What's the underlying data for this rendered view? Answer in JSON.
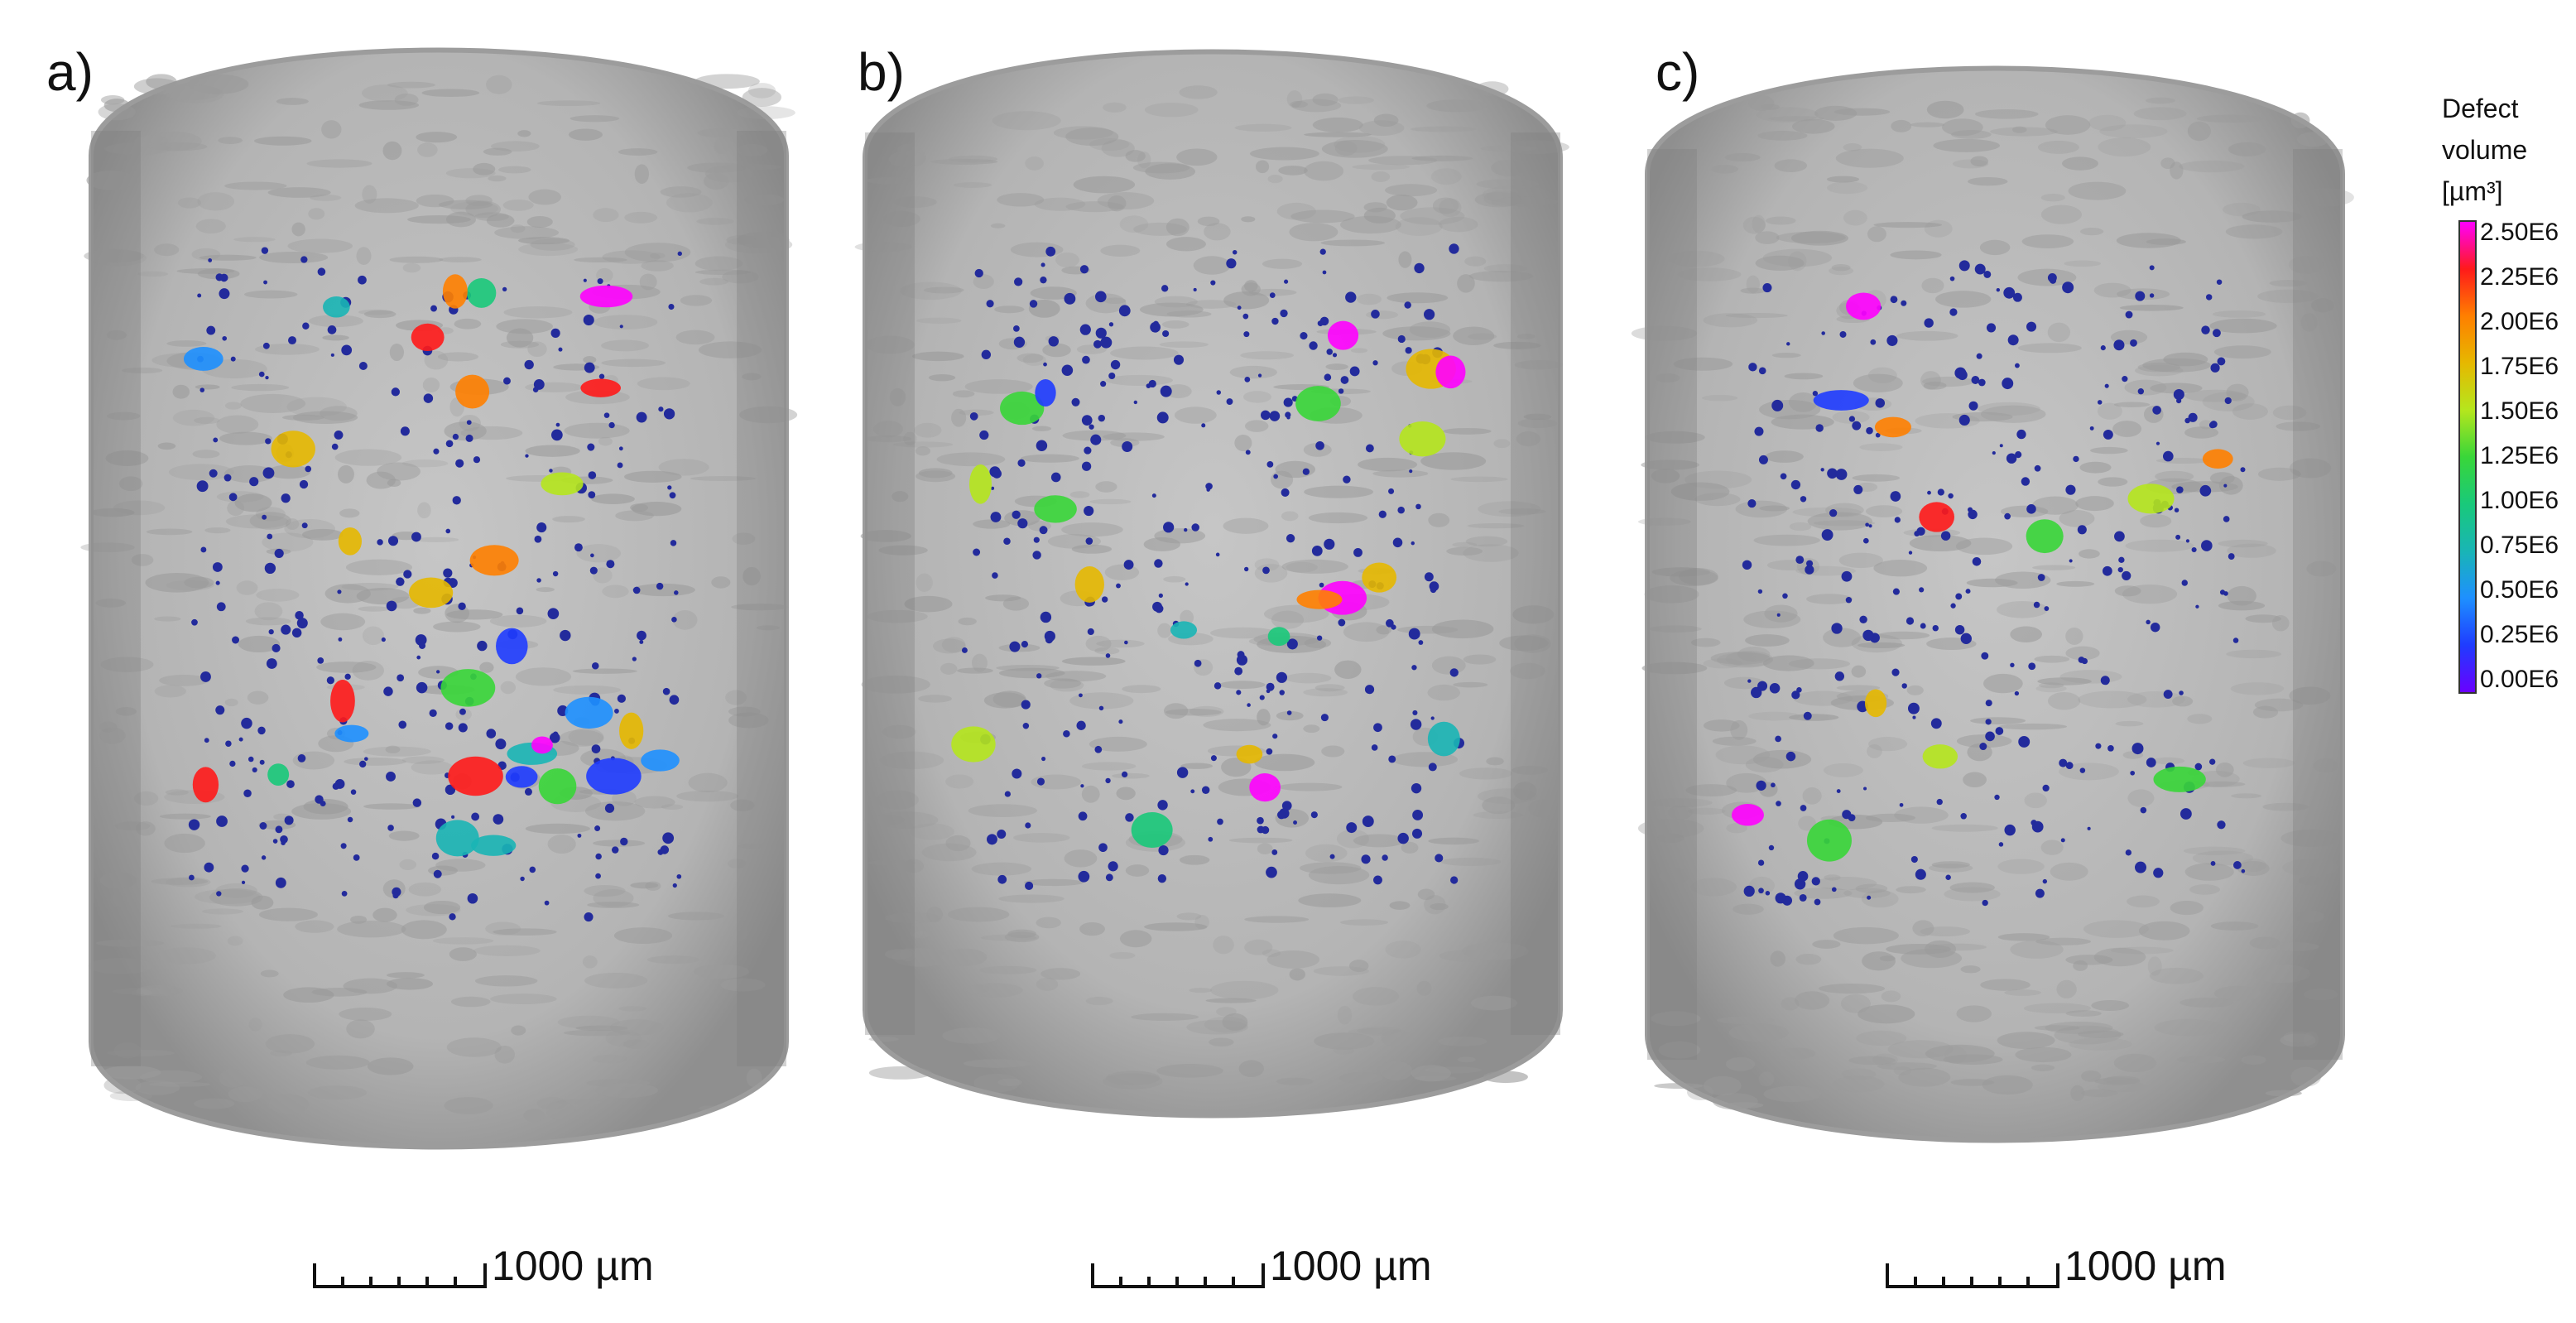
{
  "panels": [
    {
      "label": "a)",
      "scale_bar": "1000 µm"
    },
    {
      "label": "b)",
      "scale_bar": "1000 µm"
    },
    {
      "label": "c)",
      "scale_bar": "1000 µm"
    }
  ],
  "legend": {
    "title_lines": [
      "Defect",
      "volume",
      "[µm³]"
    ],
    "ticks": [
      "2.50E6",
      "2.25E6",
      "2.00E6",
      "1.75E6",
      "1.50E6",
      "1.25E6",
      "1.00E6",
      "0.75E6",
      "0.50E6",
      "0.25E6",
      "0.00E6"
    ],
    "colormap": [
      "#ff00ff",
      "#ff1a1a",
      "#ff7f00",
      "#e6b800",
      "#b5e61d",
      "#39d639",
      "#19c97a",
      "#19b5b5",
      "#1e90ff",
      "#1f3cff",
      "#6a00ff"
    ]
  },
  "colors": {
    "sample_body": "#bdbdbd",
    "sample_texture": "#9a9a9a",
    "small_defect": "#232b9c"
  }
}
